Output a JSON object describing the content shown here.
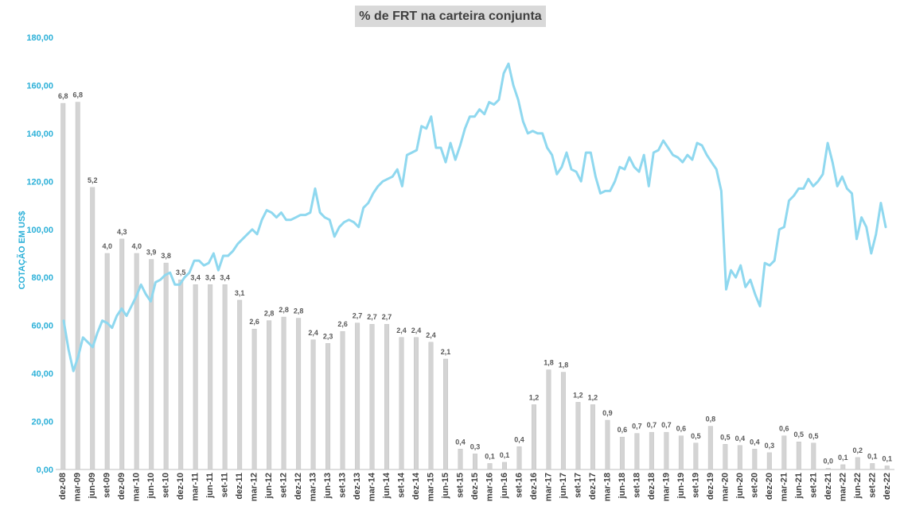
{
  "chart_data": {
    "type": "bar+line",
    "title": "% de FRT na carteira conjunta",
    "ylabel": "COTAÇÃO EM US$",
    "ylim": [
      0,
      180
    ],
    "yticks": [
      "0,00",
      "20,00",
      "40,00",
      "60,00",
      "80,00",
      "100,00",
      "120,00",
      "140,00",
      "160,00",
      "180,00"
    ],
    "x_tick_labels": [
      "dez-08",
      "mar-09",
      "jun-09",
      "set-09",
      "dez-09",
      "mar-10",
      "jun-10",
      "set-10",
      "dez-10",
      "mar-11",
      "jun-11",
      "set-11",
      "dez-11",
      "mar-12",
      "jun-12",
      "set-12",
      "dez-12",
      "mar-13",
      "jun-13",
      "set-13",
      "dez-13",
      "mar-14",
      "jun-14",
      "set-14",
      "dez-14",
      "mar-15",
      "jun-15",
      "set-15",
      "dez-15",
      "mar-16",
      "jun-16",
      "set-16",
      "dez-16",
      "mar-17",
      "jun-17",
      "set-17",
      "dez-17",
      "mar-18",
      "jun-18",
      "set-18",
      "dez-18",
      "mar-19",
      "jun-19",
      "set-19",
      "dez-19",
      "mar-20",
      "jun-20",
      "set-20",
      "dez-20",
      "mar-21",
      "jun-21",
      "set-21",
      "dez-21",
      "mar-22",
      "jun-22",
      "set-22",
      "dez-22"
    ],
    "bar_labels": [
      "6,8",
      "6,8",
      "5,2",
      "4,0",
      "4,3",
      "4,0",
      "3,9",
      "3,8",
      "3,5",
      "3,4",
      "3,4",
      "3,4",
      "3,1",
      "2,6",
      "2,8",
      "2,8",
      "2,8",
      "2,4",
      "2,3",
      "2,6",
      "2,7",
      "2,7",
      "2,7",
      "2,4",
      "2,4",
      "2,4",
      "2,1",
      "0,4",
      "0,3",
      "0,1",
      "0,1",
      "0,4",
      "1,2",
      "1,8",
      "1,8",
      "1,2",
      "1,2",
      "0,9",
      "0,6",
      "0,7",
      "0,7",
      "0,7",
      "0,6",
      "0,5",
      "0,8",
      "0,5",
      "0,4",
      "0,4",
      "0,3",
      "0,6",
      "0,5",
      "0,5",
      "0,0",
      "0,1",
      "0,2",
      "0,1",
      "0,1"
    ],
    "bar_values": [
      152.5,
      153,
      117.5,
      90,
      96,
      90,
      87.5,
      86,
      79,
      77,
      77,
      77,
      70.5,
      58.5,
      62,
      63.5,
      63,
      54,
      52.5,
      57.5,
      61,
      60.5,
      60.5,
      55,
      55,
      53,
      46,
      8.5,
      6.5,
      2.5,
      3,
      9.5,
      27,
      41.5,
      40.5,
      28,
      27,
      20.5,
      13.5,
      15,
      15.5,
      15.5,
      14,
      11,
      18,
      10.5,
      10,
      8.5,
      7,
      14,
      11.5,
      11,
      0.5,
      2,
      5,
      2.5,
      1.5
    ],
    "line_values": [
      62,
      50,
      41,
      47,
      55,
      53,
      51,
      57,
      62,
      61,
      59,
      64,
      67,
      64,
      68,
      72,
      77,
      73,
      70,
      78,
      79,
      81,
      82,
      77,
      77,
      80,
      82,
      87,
      87,
      85,
      86,
      90,
      83,
      89,
      89,
      91,
      94,
      96,
      98,
      100,
      98,
      104,
      108,
      107,
      105,
      107,
      104,
      104,
      105,
      106,
      106,
      107,
      117,
      107,
      105,
      104,
      97,
      101,
      103,
      104,
      103,
      101,
      109,
      111,
      115,
      118,
      120,
      121,
      122,
      125,
      118,
      131,
      132,
      133,
      143,
      142,
      147,
      134,
      134,
      128,
      136,
      129,
      135,
      142,
      147,
      147,
      150,
      148,
      153,
      152,
      154,
      165,
      169,
      160,
      154,
      145,
      140,
      141,
      140,
      140,
      134,
      131,
      123,
      126,
      132,
      125,
      124,
      120,
      132,
      132,
      122,
      115,
      116,
      116,
      120,
      126,
      125,
      130,
      126,
      124,
      131,
      118,
      132,
      133,
      137,
      134,
      131,
      130,
      128,
      131,
      129,
      136,
      135,
      131,
      128,
      125,
      116,
      75,
      83,
      80,
      85,
      76,
      79,
      73,
      68,
      86,
      85,
      87,
      100,
      101,
      112,
      114,
      117,
      117,
      121,
      118,
      120,
      123,
      136,
      128,
      118,
      122,
      117,
      115,
      96,
      105,
      101,
      90,
      98,
      111,
      101
    ]
  }
}
